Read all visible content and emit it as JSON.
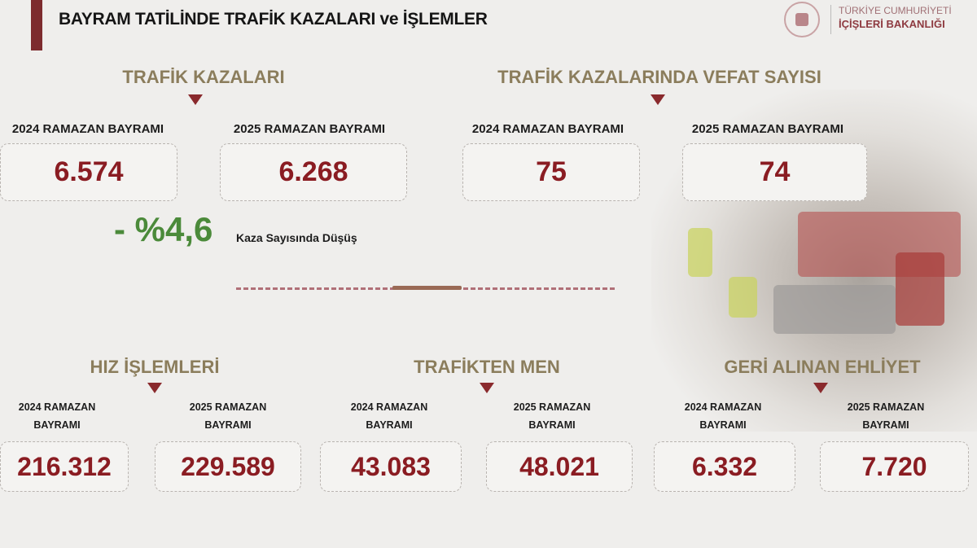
{
  "header": {
    "title": "BAYRAM TATİLİNDE TRAFİK KAZALARI ve İŞLEMLER",
    "org_line1": "TÜRKİYE CUMHURİYETİ",
    "org_line2": "İÇİŞLERİ BAKANLIĞI"
  },
  "accidents": {
    "title": "TRAFİK KAZALARI",
    "label_2024": "2024 RAMAZAN BAYRAMI",
    "label_2025": "2025 RAMAZAN BAYRAMI",
    "value_2024": "6.574",
    "value_2025": "6.268",
    "change": "- %4,6",
    "change_label": "Kaza Sayısında Düşüş"
  },
  "deaths": {
    "title": "TRAFİK KAZALARINDA VEFAT SAYISI",
    "label_2024": "2024 RAMAZAN BAYRAMI",
    "label_2025": "2025 RAMAZAN BAYRAMI",
    "value_2024": "75",
    "value_2025": "74"
  },
  "speed": {
    "title": "HIZ İŞLEMLERİ",
    "label_2024": "2024 RAMAZAN BAYRAMI",
    "label_2025": "2025 RAMAZAN BAYRAMI",
    "value_2024": "216.312",
    "value_2025": "229.589"
  },
  "banned": {
    "title": "TRAFİKTEN MEN",
    "label_2024": "2024 RAMAZAN BAYRAMI",
    "label_2025": "2025 RAMAZAN BAYRAMI",
    "value_2024": "43.083",
    "value_2025": "48.021"
  },
  "licenses": {
    "title": "GERİ ALINAN EHLİYET",
    "label_2024": "2024 RAMAZAN BAYRAMI",
    "label_2025": "2025 RAMAZAN BAYRAMI",
    "value_2024": "6.332",
    "value_2025": "7.720"
  },
  "colors": {
    "accent": "#8a1c22",
    "section": "#8b7d5c",
    "positive": "#4b8a3a"
  }
}
